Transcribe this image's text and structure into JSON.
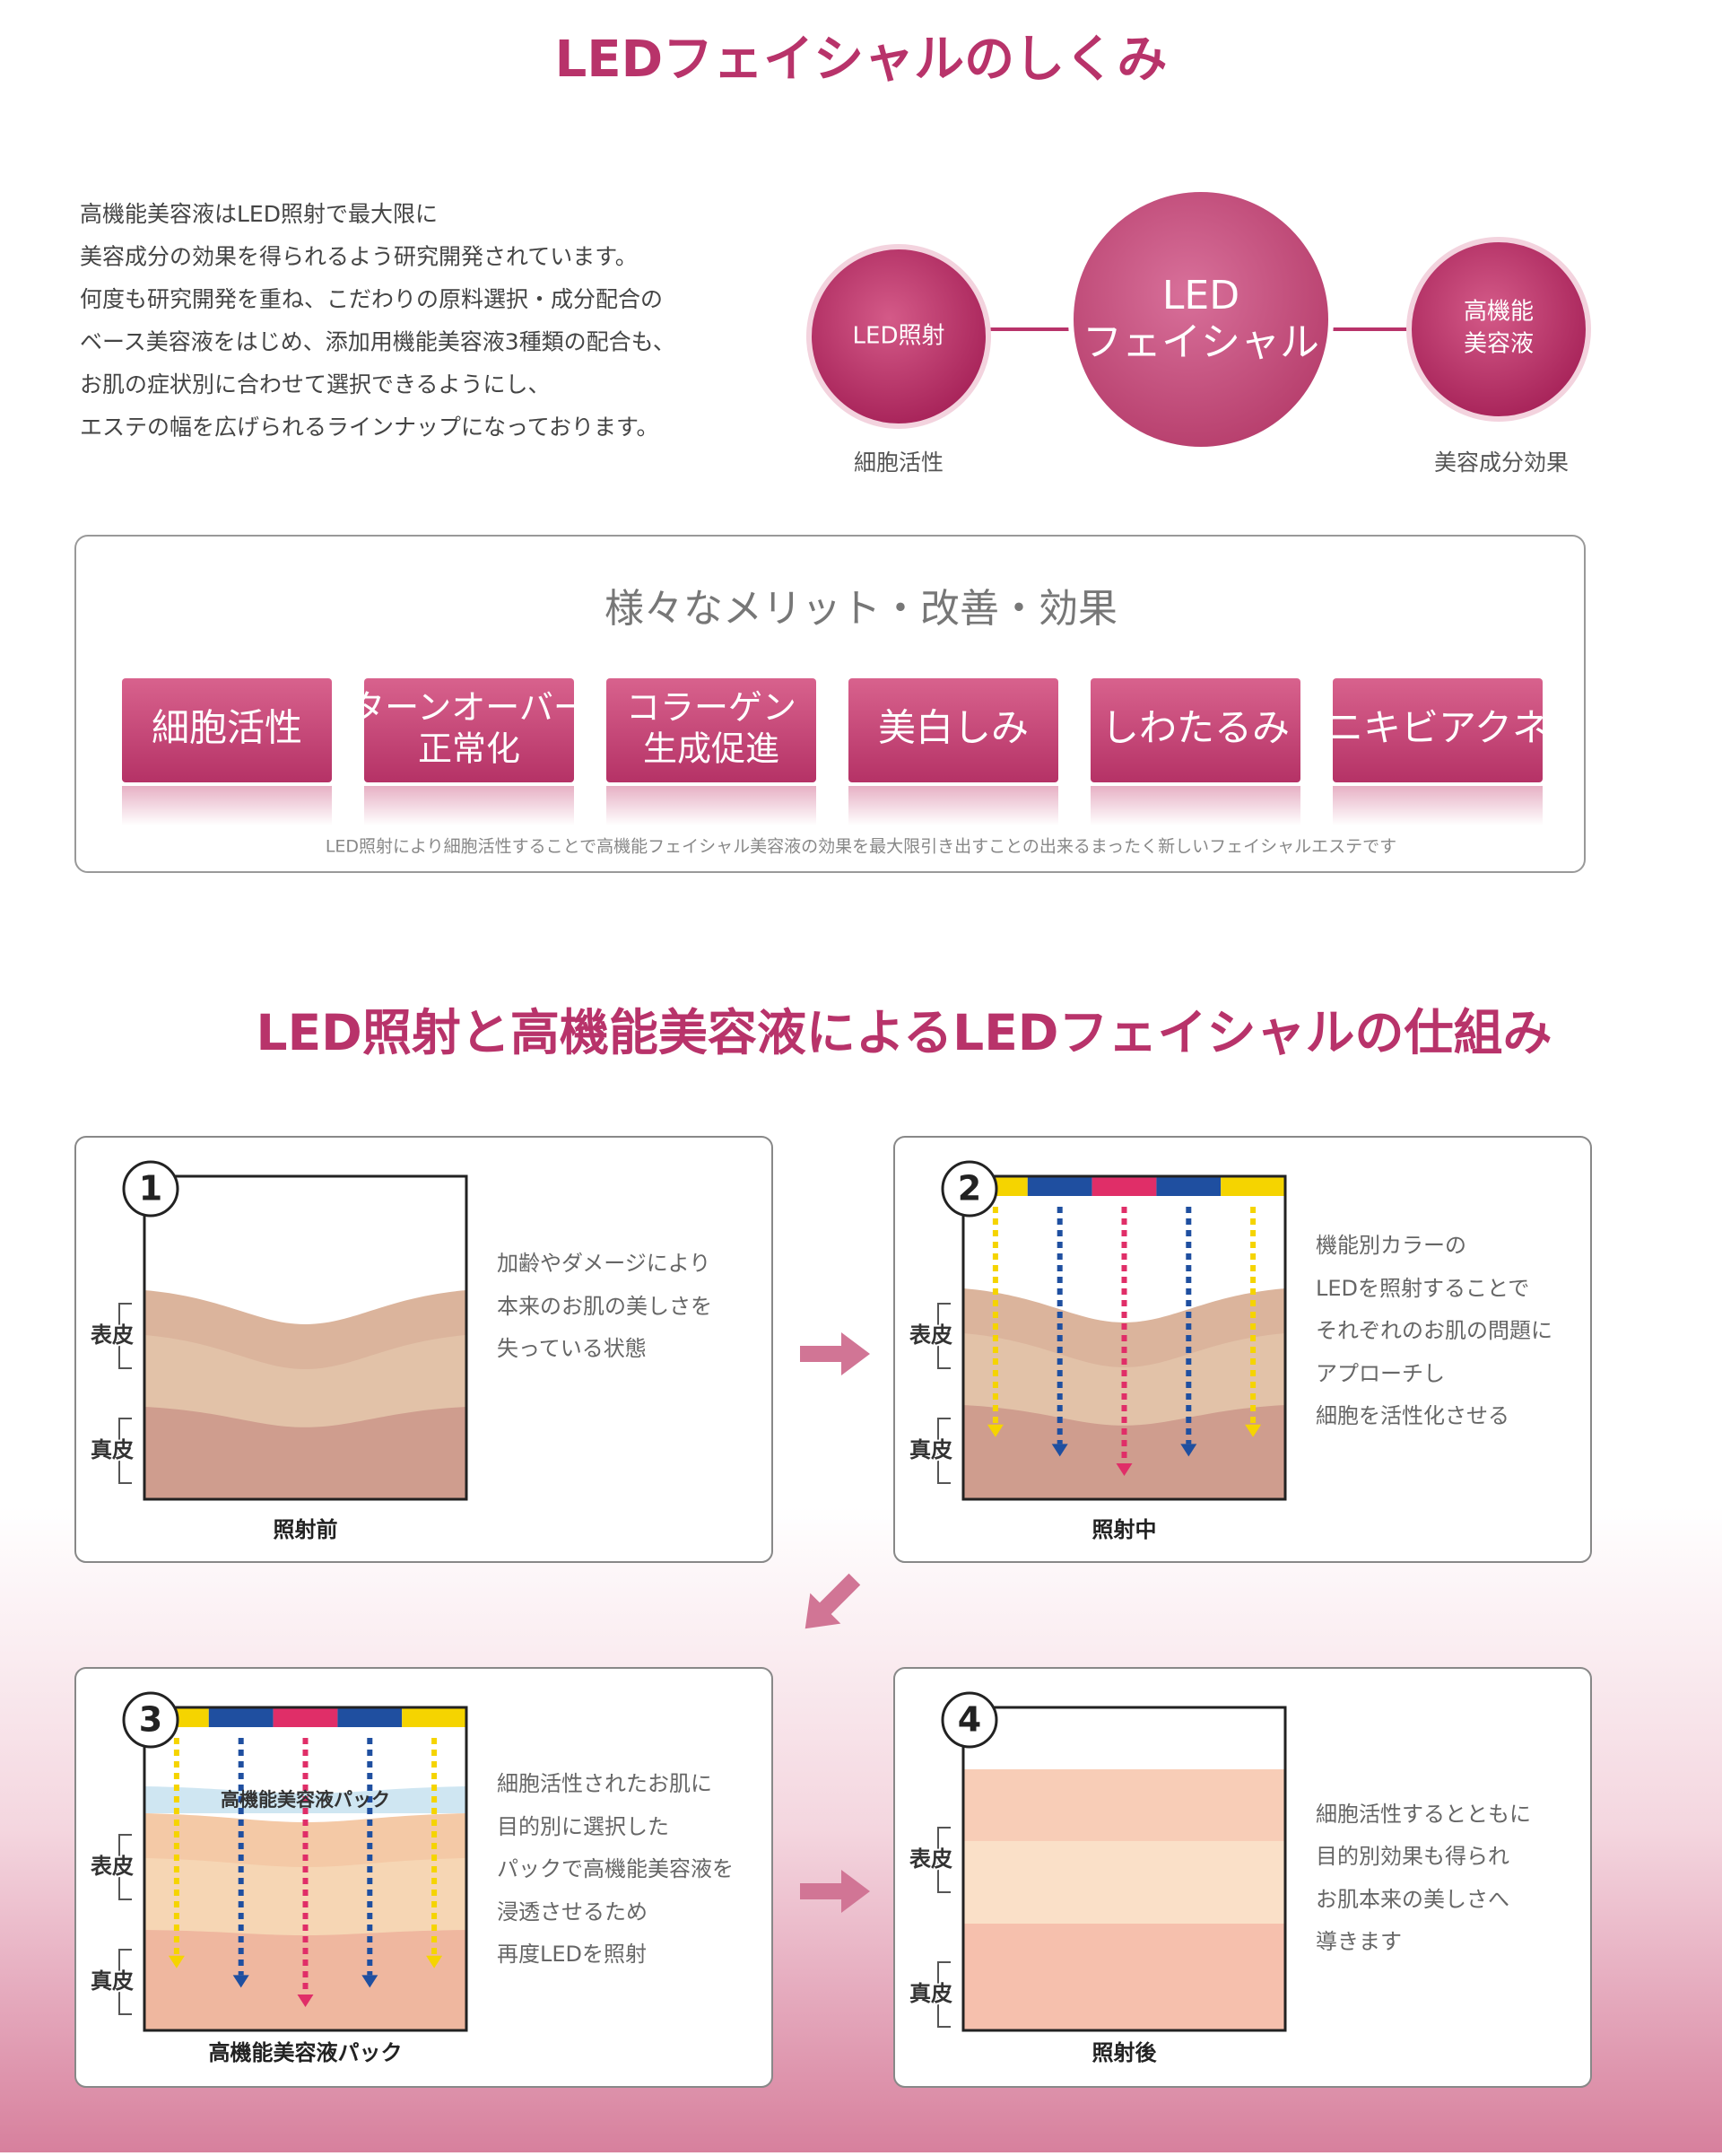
{
  "header": {
    "title": "LEDフェイシャルのしくみ"
  },
  "intro": {
    "lines": [
      "高機能美容液はLED照射で最大限に",
      "美容成分の効果を得られるよう研究開発されています。",
      "何度も研究開発を重ね、こだわりの原料選択・成分配合の",
      "ベース美容液をはじめ、添加用機能美容液3種類の配合も、",
      "お肌の症状別に合わせて選択できるようにし、",
      "エステの幅を広げられるラインナップになっております。"
    ]
  },
  "diagram": {
    "left": {
      "label": "LED照射",
      "caption": "細胞活性"
    },
    "center": {
      "lines": [
        "LED",
        "フェイシャル"
      ]
    },
    "right": {
      "lines": [
        "高機能",
        "美容液"
      ],
      "caption": "美容成分効果"
    }
  },
  "merits": {
    "heading": "様々なメリット・改善・効果",
    "items": [
      [
        "細胞活性"
      ],
      [
        "ターンオーバー",
        "正常化"
      ],
      [
        "コラーゲン",
        "生成促進"
      ],
      [
        "美白しみ"
      ],
      [
        "しわたるみ"
      ],
      [
        "ニキビアクネ"
      ]
    ],
    "note": "LED照射により細胞活性することで高機能フェイシャル美容液の効果を最大限引き出すことの出来るまったく新しいフェイシャルエステです"
  },
  "mechanism": {
    "title": "LED照射と高機能美容液によるLEDフェイシャルの仕組み",
    "panels": [
      {
        "number": "1",
        "caption": "照射前",
        "epidermis": "表皮",
        "dermis": "真皮",
        "lines": [
          "加齢やダメージにより",
          "本来のお肌の美しさを",
          "失っている状態"
        ]
      },
      {
        "number": "2",
        "caption": "照射中",
        "epidermis": "表皮",
        "dermis": "真皮",
        "lines": [
          "機能別カラーの",
          "LEDを照射することで",
          "それぞれのお肌の問題に",
          "アプローチし",
          "細胞を活性化させる"
        ]
      },
      {
        "number": "3",
        "caption": "高機能美容液パック",
        "epidermis": "表皮",
        "dermis": "真皮",
        "pack": "高機能美容液パック",
        "lines": [
          "細胞活性されたお肌に",
          "目的別に選択した",
          "パックで高機能美容液を",
          "浸透させるため",
          "再度LEDを照射"
        ]
      },
      {
        "number": "4",
        "caption": "照射後",
        "epidermis": "表皮",
        "dermis": "真皮",
        "lines": [
          "細胞活性するとともに",
          "目的別効果も得られ",
          "お肌本来の美しさへ",
          "導きます"
        ]
      }
    ]
  }
}
